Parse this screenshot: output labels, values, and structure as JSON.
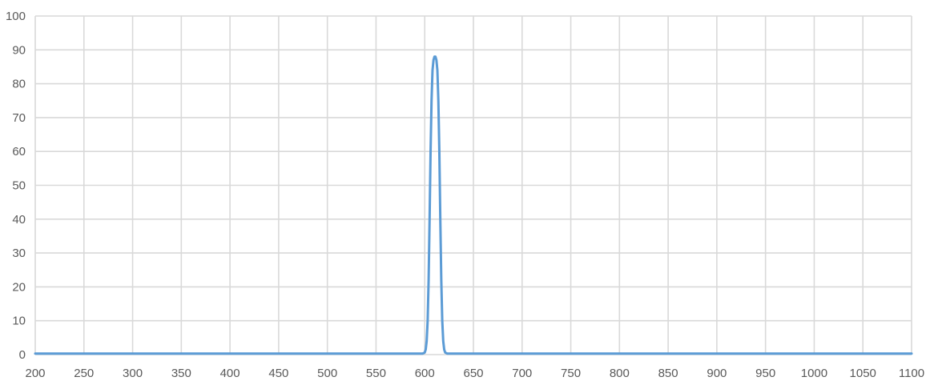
{
  "chart_data": {
    "type": "line",
    "title": "",
    "xlabel": "",
    "ylabel": "",
    "xlim": [
      200,
      1100
    ],
    "ylim": [
      0,
      100
    ],
    "x_ticks": [
      "200",
      "250",
      "300",
      "350",
      "400",
      "450",
      "500",
      "550",
      "600",
      "650",
      "700",
      "750",
      "800",
      "850",
      "900",
      "950",
      "1000",
      "1050",
      "1100"
    ],
    "y_ticks": [
      "0",
      "10",
      "20",
      "30",
      "40",
      "50",
      "60",
      "70",
      "80",
      "90",
      "100"
    ],
    "grid": true,
    "legend": "none",
    "series": [
      {
        "color": "#5b9bd5",
        "points": [
          [
            200,
            0.3
          ],
          [
            550,
            0.3
          ],
          [
            598,
            0.3
          ],
          [
            600,
            0.6
          ],
          [
            601,
            1.5
          ],
          [
            602,
            4
          ],
          [
            603,
            10
          ],
          [
            604,
            22
          ],
          [
            605,
            40
          ],
          [
            606,
            60
          ],
          [
            607,
            75
          ],
          [
            608,
            84
          ],
          [
            609,
            87
          ],
          [
            610,
            88
          ],
          [
            611,
            88
          ],
          [
            612,
            87
          ],
          [
            613,
            84
          ],
          [
            614,
            75
          ],
          [
            615,
            60
          ],
          [
            616,
            40
          ],
          [
            617,
            22
          ],
          [
            618,
            10
          ],
          [
            619,
            4
          ],
          [
            620,
            1.5
          ],
          [
            621,
            0.6
          ],
          [
            623,
            0.3
          ],
          [
            700,
            0.3
          ],
          [
            1100,
            0.3
          ]
        ]
      }
    ]
  }
}
